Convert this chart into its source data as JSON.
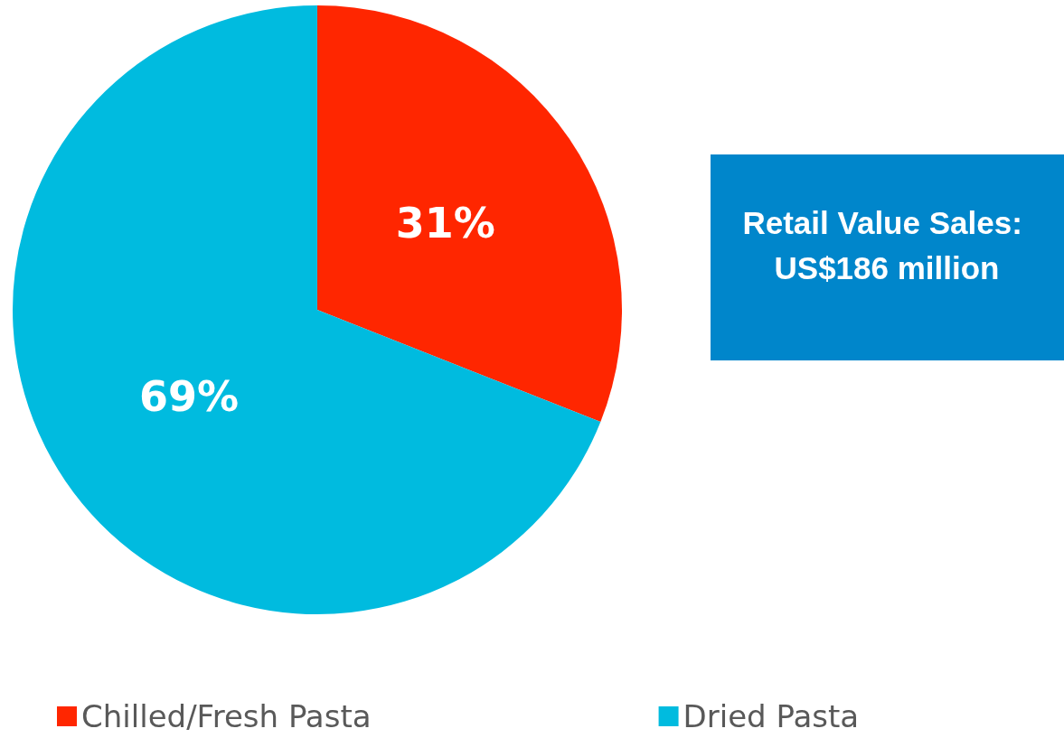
{
  "chart_data": {
    "type": "pie",
    "categories": [
      "Chilled/Fresh Pasta",
      "Dried Pasta"
    ],
    "values": [
      31,
      69
    ],
    "colors": [
      "#ff2600",
      "#00bbdf"
    ],
    "value_labels": [
      "31%",
      "69%"
    ],
    "legend": "bottom",
    "annotations": [
      "Retail Value Sales: US$186 million"
    ]
  }
}
